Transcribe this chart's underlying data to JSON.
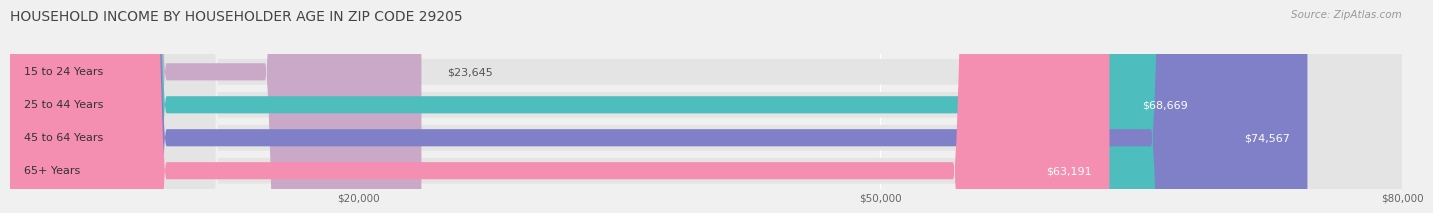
{
  "title": "HOUSEHOLD INCOME BY HOUSEHOLDER AGE IN ZIP CODE 29205",
  "source": "Source: ZipAtlas.com",
  "categories": [
    "15 to 24 Years",
    "25 to 44 Years",
    "45 to 64 Years",
    "65+ Years"
  ],
  "values": [
    23645,
    68669,
    74567,
    63191
  ],
  "bar_colors": [
    "#c9a8c8",
    "#4dbdbd",
    "#8080c8",
    "#f48fb1"
  ],
  "xmin": 0,
  "xmax": 80000,
  "xticks": [
    20000,
    50000,
    80000
  ],
  "xtick_labels": [
    "$20,000",
    "$50,000",
    "$80,000"
  ],
  "background_color": "#f0f0f0",
  "bar_bg_color": "#e4e4e4",
  "title_fontsize": 10,
  "source_fontsize": 7.5,
  "label_fontsize": 8,
  "value_fontsize": 8,
  "tick_fontsize": 7.5
}
